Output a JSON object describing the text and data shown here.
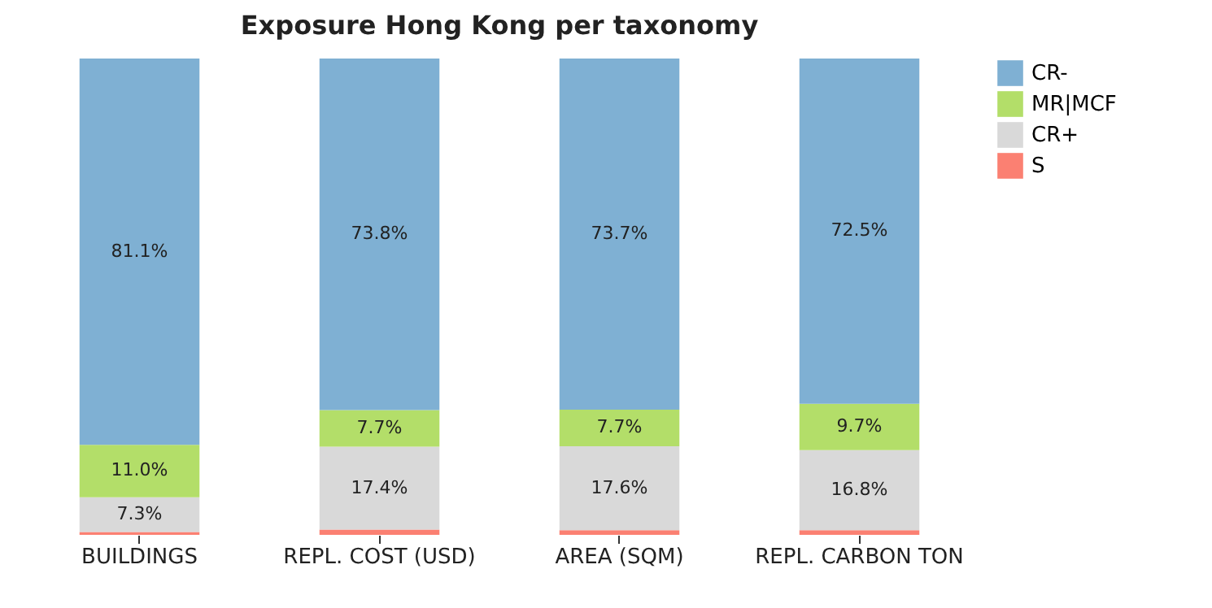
{
  "chart_data": {
    "type": "bar",
    "title": "Exposure Hong Kong per taxonomy",
    "categories": [
      "BUILDINGS",
      "REPL. COST (USD)",
      "AREA (SQM)",
      "REPL. CARBON TON"
    ],
    "stacked": true,
    "ylim": [
      0,
      100
    ],
    "tick_labels": "x",
    "grid": false,
    "legend": "top right",
    "series": [
      {
        "name": "S",
        "color": "#fb8072",
        "values": [
          0.6,
          1.1,
          1.0,
          1.0
        ],
        "value_labels": [
          null,
          null,
          null,
          null
        ]
      },
      {
        "name": "CR+",
        "color": "#d9d9d9",
        "values": [
          7.3,
          17.4,
          17.6,
          16.8
        ],
        "value_labels": [
          "7.3%",
          "17.4%",
          "17.6%",
          "16.8%"
        ]
      },
      {
        "name": "MR|MCF",
        "color": "#b3de69",
        "values": [
          11.0,
          7.7,
          7.7,
          9.7
        ],
        "value_labels": [
          "11.0%",
          "7.7%",
          "7.7%",
          "9.7%"
        ]
      },
      {
        "name": "CR-",
        "color": "#7fb0d3",
        "values": [
          81.1,
          73.8,
          73.7,
          72.5
        ],
        "value_labels": [
          "81.1%",
          "73.8%",
          "73.7%",
          "72.5%"
        ]
      }
    ]
  }
}
